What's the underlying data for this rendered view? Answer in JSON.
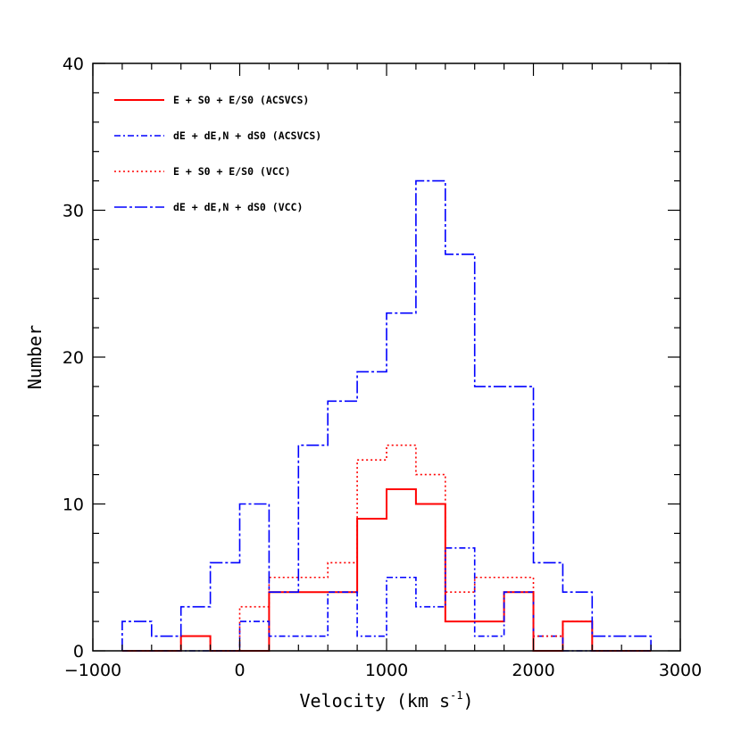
{
  "chart_data": {
    "type": "histogram",
    "title": "",
    "xlabel": "Velocity (km s",
    "xlabel_sup": "-1",
    "xlabel_end": ")",
    "ylabel": "Number",
    "xlim": [
      -1000,
      3000
    ],
    "ylim": [
      0,
      40
    ],
    "x_ticks": [
      -1000,
      0,
      1000,
      2000,
      3000
    ],
    "x_tick_labels": [
      "−1000",
      "0",
      "1000",
      "2000",
      "3000"
    ],
    "y_ticks": [
      0,
      10,
      20,
      30,
      40
    ],
    "y_tick_labels": [
      "0",
      "10",
      "20",
      "30",
      "40"
    ],
    "legend_position": "top-left",
    "series": [
      {
        "name": "E + S0 + E/S0 (ACSVCS)",
        "color": "#ff0000",
        "style": "solid",
        "bin_edges": [
          -800,
          -600,
          -400,
          -200,
          0,
          200,
          400,
          600,
          800,
          1000,
          1200,
          1400,
          1600,
          1800,
          2000,
          2200,
          2400,
          2600,
          2800
        ],
        "counts": [
          0,
          0,
          1,
          0,
          0,
          4,
          4,
          4,
          9,
          11,
          10,
          2,
          2,
          4,
          0,
          2,
          0,
          0
        ]
      },
      {
        "name": "dE + dE,N + dS0 (ACSVCS)",
        "color": "#0000ff",
        "style": "dashdot",
        "bin_edges": [
          -800,
          -600,
          -400,
          -200,
          0,
          200,
          400,
          600,
          800,
          1000,
          1200,
          1400,
          1600,
          1800,
          2000,
          2200,
          2400,
          2600,
          2800
        ],
        "counts": [
          0,
          0,
          0,
          0,
          2,
          1,
          1,
          4,
          1,
          5,
          3,
          7,
          1,
          4,
          1,
          0,
          0,
          0
        ]
      },
      {
        "name": "E + S0 + E/S0 (VCC)",
        "color": "#ff0000",
        "style": "dotted",
        "bin_edges": [
          -800,
          -600,
          -400,
          -200,
          0,
          200,
          400,
          600,
          800,
          1000,
          1200,
          1400,
          1600,
          1800,
          2000,
          2200,
          2400,
          2600,
          2800
        ],
        "counts": [
          0,
          0,
          1,
          0,
          3,
          5,
          5,
          6,
          13,
          14,
          12,
          4,
          5,
          5,
          1,
          2,
          0,
          0
        ]
      },
      {
        "name": "dE + dE,N + dS0 (VCC)",
        "color": "#0000ff",
        "style": "longdashdot",
        "bin_edges": [
          -800,
          -600,
          -400,
          -200,
          0,
          200,
          400,
          600,
          800,
          1000,
          1200,
          1400,
          1600,
          1800,
          2000,
          2200,
          2400,
          2600,
          2800
        ],
        "counts": [
          2,
          1,
          3,
          6,
          10,
          4,
          14,
          17,
          19,
          23,
          32,
          27,
          18,
          18,
          6,
          4,
          1,
          1
        ]
      }
    ]
  }
}
